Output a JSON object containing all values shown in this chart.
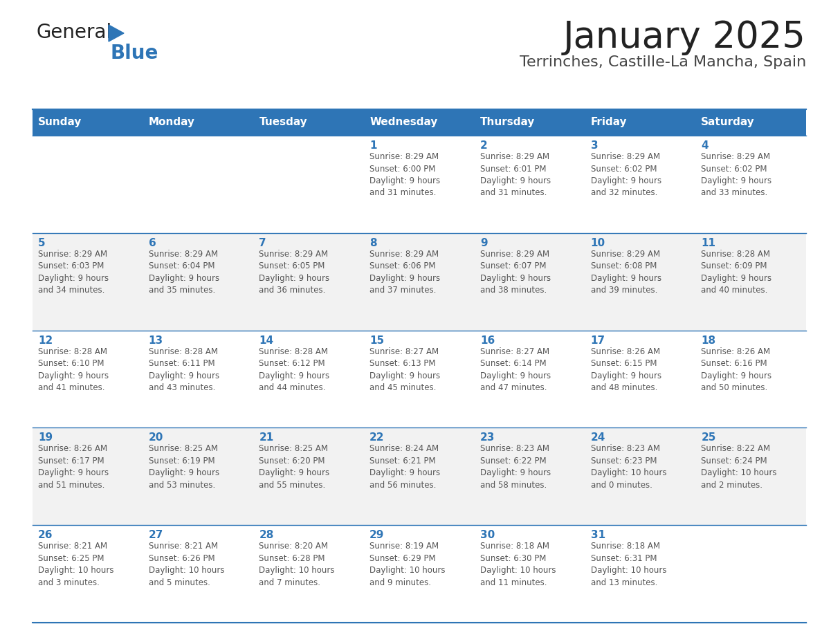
{
  "title": "January 2025",
  "subtitle": "Terrinches, Castille-La Mancha, Spain",
  "header_bg": "#2E75B6",
  "header_text_color": "#FFFFFF",
  "row_bg_odd": "#F2F2F2",
  "row_bg_even": "#FFFFFF",
  "day_names": [
    "Sunday",
    "Monday",
    "Tuesday",
    "Wednesday",
    "Thursday",
    "Friday",
    "Saturday"
  ],
  "title_color": "#222222",
  "subtitle_color": "#444444",
  "line_color": "#2E75B6",
  "day_number_color": "#2E75B6",
  "cell_text_color": "#555555",
  "logo_general_color": "#222222",
  "logo_blue_color": "#2E75B6",
  "logo_triangle_color": "#2E75B6",
  "calendar": [
    [
      {
        "day": 0,
        "text": ""
      },
      {
        "day": 0,
        "text": ""
      },
      {
        "day": 0,
        "text": ""
      },
      {
        "day": 1,
        "text": "Sunrise: 8:29 AM\nSunset: 6:00 PM\nDaylight: 9 hours\nand 31 minutes."
      },
      {
        "day": 2,
        "text": "Sunrise: 8:29 AM\nSunset: 6:01 PM\nDaylight: 9 hours\nand 31 minutes."
      },
      {
        "day": 3,
        "text": "Sunrise: 8:29 AM\nSunset: 6:02 PM\nDaylight: 9 hours\nand 32 minutes."
      },
      {
        "day": 4,
        "text": "Sunrise: 8:29 AM\nSunset: 6:02 PM\nDaylight: 9 hours\nand 33 minutes."
      }
    ],
    [
      {
        "day": 5,
        "text": "Sunrise: 8:29 AM\nSunset: 6:03 PM\nDaylight: 9 hours\nand 34 minutes."
      },
      {
        "day": 6,
        "text": "Sunrise: 8:29 AM\nSunset: 6:04 PM\nDaylight: 9 hours\nand 35 minutes."
      },
      {
        "day": 7,
        "text": "Sunrise: 8:29 AM\nSunset: 6:05 PM\nDaylight: 9 hours\nand 36 minutes."
      },
      {
        "day": 8,
        "text": "Sunrise: 8:29 AM\nSunset: 6:06 PM\nDaylight: 9 hours\nand 37 minutes."
      },
      {
        "day": 9,
        "text": "Sunrise: 8:29 AM\nSunset: 6:07 PM\nDaylight: 9 hours\nand 38 minutes."
      },
      {
        "day": 10,
        "text": "Sunrise: 8:29 AM\nSunset: 6:08 PM\nDaylight: 9 hours\nand 39 minutes."
      },
      {
        "day": 11,
        "text": "Sunrise: 8:28 AM\nSunset: 6:09 PM\nDaylight: 9 hours\nand 40 minutes."
      }
    ],
    [
      {
        "day": 12,
        "text": "Sunrise: 8:28 AM\nSunset: 6:10 PM\nDaylight: 9 hours\nand 41 minutes."
      },
      {
        "day": 13,
        "text": "Sunrise: 8:28 AM\nSunset: 6:11 PM\nDaylight: 9 hours\nand 43 minutes."
      },
      {
        "day": 14,
        "text": "Sunrise: 8:28 AM\nSunset: 6:12 PM\nDaylight: 9 hours\nand 44 minutes."
      },
      {
        "day": 15,
        "text": "Sunrise: 8:27 AM\nSunset: 6:13 PM\nDaylight: 9 hours\nand 45 minutes."
      },
      {
        "day": 16,
        "text": "Sunrise: 8:27 AM\nSunset: 6:14 PM\nDaylight: 9 hours\nand 47 minutes."
      },
      {
        "day": 17,
        "text": "Sunrise: 8:26 AM\nSunset: 6:15 PM\nDaylight: 9 hours\nand 48 minutes."
      },
      {
        "day": 18,
        "text": "Sunrise: 8:26 AM\nSunset: 6:16 PM\nDaylight: 9 hours\nand 50 minutes."
      }
    ],
    [
      {
        "day": 19,
        "text": "Sunrise: 8:26 AM\nSunset: 6:17 PM\nDaylight: 9 hours\nand 51 minutes."
      },
      {
        "day": 20,
        "text": "Sunrise: 8:25 AM\nSunset: 6:19 PM\nDaylight: 9 hours\nand 53 minutes."
      },
      {
        "day": 21,
        "text": "Sunrise: 8:25 AM\nSunset: 6:20 PM\nDaylight: 9 hours\nand 55 minutes."
      },
      {
        "day": 22,
        "text": "Sunrise: 8:24 AM\nSunset: 6:21 PM\nDaylight: 9 hours\nand 56 minutes."
      },
      {
        "day": 23,
        "text": "Sunrise: 8:23 AM\nSunset: 6:22 PM\nDaylight: 9 hours\nand 58 minutes."
      },
      {
        "day": 24,
        "text": "Sunrise: 8:23 AM\nSunset: 6:23 PM\nDaylight: 10 hours\nand 0 minutes."
      },
      {
        "day": 25,
        "text": "Sunrise: 8:22 AM\nSunset: 6:24 PM\nDaylight: 10 hours\nand 2 minutes."
      }
    ],
    [
      {
        "day": 26,
        "text": "Sunrise: 8:21 AM\nSunset: 6:25 PM\nDaylight: 10 hours\nand 3 minutes."
      },
      {
        "day": 27,
        "text": "Sunrise: 8:21 AM\nSunset: 6:26 PM\nDaylight: 10 hours\nand 5 minutes."
      },
      {
        "day": 28,
        "text": "Sunrise: 8:20 AM\nSunset: 6:28 PM\nDaylight: 10 hours\nand 7 minutes."
      },
      {
        "day": 29,
        "text": "Sunrise: 8:19 AM\nSunset: 6:29 PM\nDaylight: 10 hours\nand 9 minutes."
      },
      {
        "day": 30,
        "text": "Sunrise: 8:18 AM\nSunset: 6:30 PM\nDaylight: 10 hours\nand 11 minutes."
      },
      {
        "day": 31,
        "text": "Sunrise: 8:18 AM\nSunset: 6:31 PM\nDaylight: 10 hours\nand 13 minutes."
      },
      {
        "day": 0,
        "text": ""
      }
    ]
  ]
}
